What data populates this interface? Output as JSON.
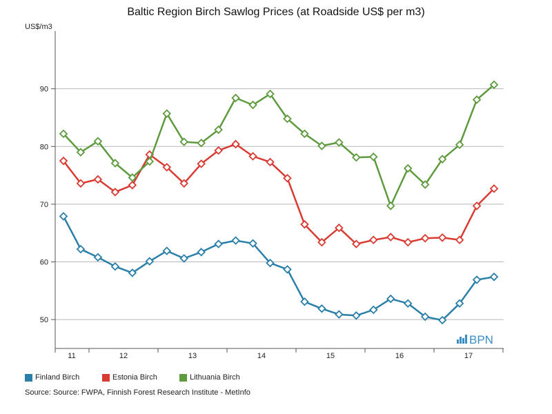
{
  "chart_data": {
    "type": "line",
    "title": "Baltic Region Birch Sawlog Prices (at Roadside US$ per m3)",
    "ylabel": "US$/m3",
    "ylim": [
      45,
      100
    ],
    "yticks": [
      50,
      60,
      70,
      80,
      90
    ],
    "x_tick_labels": [
      "11",
      "12",
      "13",
      "14",
      "15",
      "16",
      "17"
    ],
    "grid": true,
    "series": [
      {
        "name": "Finland Birch",
        "color": "#2a7fa8",
        "values": [
          67.9,
          62.2,
          60.8,
          59.2,
          58.1,
          60.1,
          61.9,
          60.6,
          61.7,
          63.1,
          63.7,
          63.2,
          59.8,
          58.7,
          53.1,
          51.9,
          50.9,
          50.7,
          51.7,
          53.6,
          52.8,
          50.5,
          49.9,
          52.8,
          56.9,
          57.4
        ]
      },
      {
        "name": "Estonia Birch",
        "color": "#d93a32",
        "values": [
          77.5,
          73.6,
          74.3,
          72.1,
          73.3,
          78.6,
          76.4,
          73.6,
          77.0,
          79.3,
          80.4,
          78.3,
          77.3,
          74.5,
          66.5,
          63.4,
          65.9,
          63.1,
          63.8,
          64.3,
          63.4,
          64.1,
          64.2,
          63.8,
          69.7,
          72.7
        ]
      },
      {
        "name": "Lithuania Birch",
        "color": "#5e9a3e",
        "values": [
          82.2,
          79.0,
          80.9,
          77.1,
          74.6,
          77.4,
          85.7,
          80.8,
          80.6,
          82.9,
          88.4,
          87.2,
          89.1,
          84.8,
          82.2,
          80.1,
          80.7,
          78.1,
          78.2,
          69.7,
          76.2,
          73.4,
          77.8,
          80.3,
          88.1,
          90.7
        ]
      }
    ],
    "legend_placement": "bottom"
  },
  "source_text": "Source: Source: FWPA, Finnish Forest Research Institute - MetInfo",
  "watermark": "BPN",
  "watermark_color": "#3b8ec4"
}
